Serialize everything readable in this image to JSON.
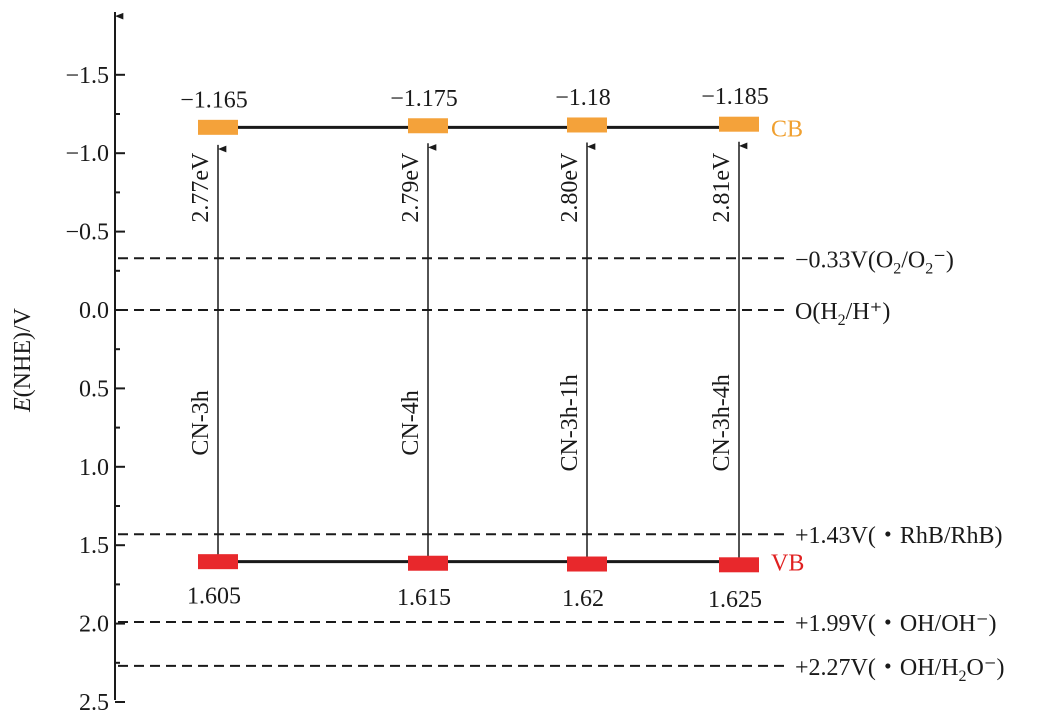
{
  "chart_data": {
    "type": "band-diagram",
    "ylabel": {
      "italic": "E",
      "rest": "(NHE)/V"
    },
    "y_range": [
      -1.85,
      2.5
    ],
    "y_inverted": true,
    "y_ticks": [
      {
        "value": -1.5,
        "label": "−1.5"
      },
      {
        "value": -1.0,
        "label": "−1.0"
      },
      {
        "value": -0.5,
        "label": "−0.5"
      },
      {
        "value": 0.0,
        "label": "0.0"
      },
      {
        "value": 0.5,
        "label": "0.5"
      },
      {
        "value": 1.0,
        "label": "1.0"
      },
      {
        "value": 1.5,
        "label": "1.5"
      },
      {
        "value": 2.0,
        "label": "2.0"
      },
      {
        "value": 2.5,
        "label": "2.5"
      }
    ],
    "samples": [
      {
        "name": "CN-3h",
        "cb": -1.165,
        "vb": 1.605,
        "cb_label": "−1.165",
        "vb_label": "1.605",
        "gap_label": "2.77eV"
      },
      {
        "name": "CN-4h",
        "cb": -1.175,
        "vb": 1.615,
        "cb_label": "−1.175",
        "vb_label": "1.615",
        "gap_label": "2.79eV"
      },
      {
        "name": "CN-3h-1h",
        "cb": -1.18,
        "vb": 1.62,
        "cb_label": "−1.18",
        "vb_label": "1.62",
        "gap_label": "2.80eV"
      },
      {
        "name": "CN-3h-4h",
        "cb": -1.185,
        "vb": 1.625,
        "cb_label": "−1.185",
        "vb_label": "1.625",
        "gap_label": "2.81eV"
      }
    ],
    "cb_label": "CB",
    "vb_label": "VB",
    "reference_lines": [
      {
        "value": -0.33,
        "parts": [
          {
            "t": "−0.33V(O"
          },
          {
            "t": "2",
            "sub": true
          },
          {
            "t": "/O"
          },
          {
            "t": "2",
            "sub": true
          },
          {
            "t": "⁻"
          },
          {
            "t": ")"
          }
        ]
      },
      {
        "value": 0.0,
        "parts": [
          {
            "t": "O(H"
          },
          {
            "t": "2",
            "sub": true
          },
          {
            "t": "/H"
          },
          {
            "t": "⁺"
          },
          {
            "t": ")"
          }
        ]
      },
      {
        "value": 1.43,
        "parts": [
          {
            "t": "+1.43V(・RhB/RhB)"
          }
        ]
      },
      {
        "value": 1.99,
        "parts": [
          {
            "t": "+1.99V(・OH/OH"
          },
          {
            "t": "⁻"
          },
          {
            "t": ")"
          }
        ]
      },
      {
        "value": 2.27,
        "parts": [
          {
            "t": "+2.27V(・OH/H"
          },
          {
            "t": "2",
            "sub": true
          },
          {
            "t": "O"
          },
          {
            "t": "⁻"
          },
          {
            "t": ")"
          }
        ]
      }
    ],
    "colors": {
      "cb": "#f4a23a",
      "vb": "#e8282c",
      "axis": "#1a1a1a",
      "cb_text": "#f0a030",
      "vb_text": "#e02020"
    }
  }
}
